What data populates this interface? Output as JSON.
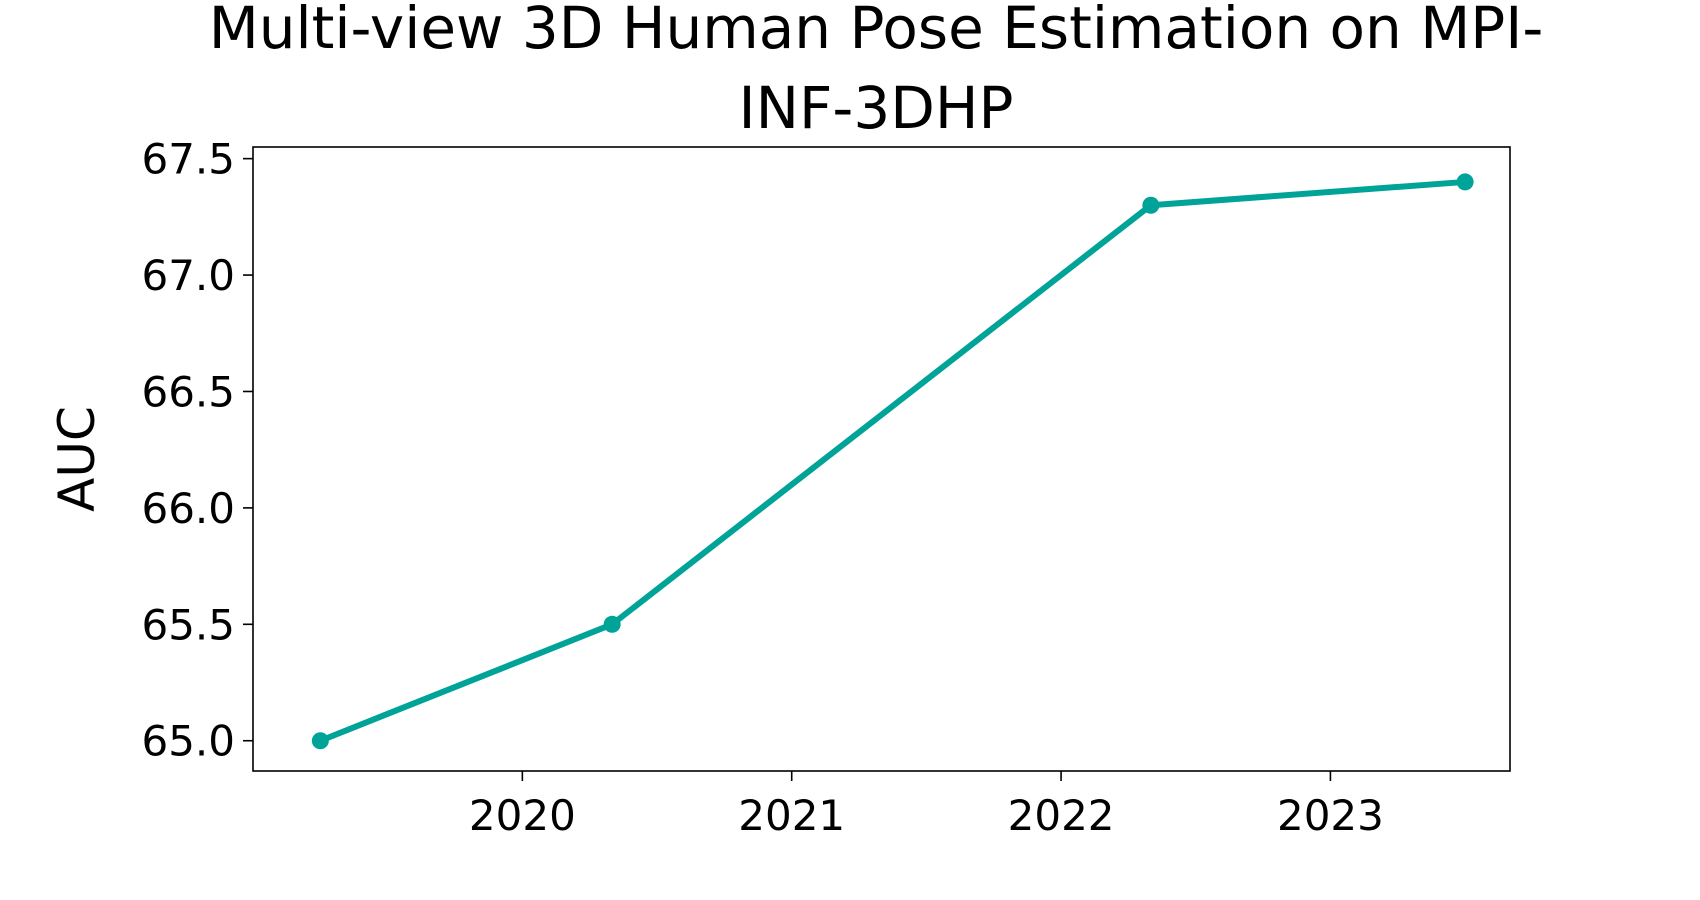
{
  "chart_data": {
    "type": "line",
    "title_line1": "Multi-view 3D Human Pose Estimation on MPI-",
    "title_line2": "INF-3DHP",
    "xlabel": "",
    "ylabel": "AUC",
    "x": [
      "2019-04",
      "2020-05",
      "2022-05",
      "2023-07"
    ],
    "xticks": [
      "2020",
      "2021",
      "2022",
      "2023"
    ],
    "xlim": [
      "2019-01",
      "2023-09"
    ],
    "yticks": [
      "65.0",
      "65.5",
      "66.0",
      "66.5",
      "67.0",
      "67.5"
    ],
    "ylim": [
      64.87,
      67.55
    ],
    "series": [
      {
        "values": [
          65.0,
          65.5,
          67.3,
          67.4
        ],
        "color": "#00a398"
      }
    ],
    "grid": false
  }
}
